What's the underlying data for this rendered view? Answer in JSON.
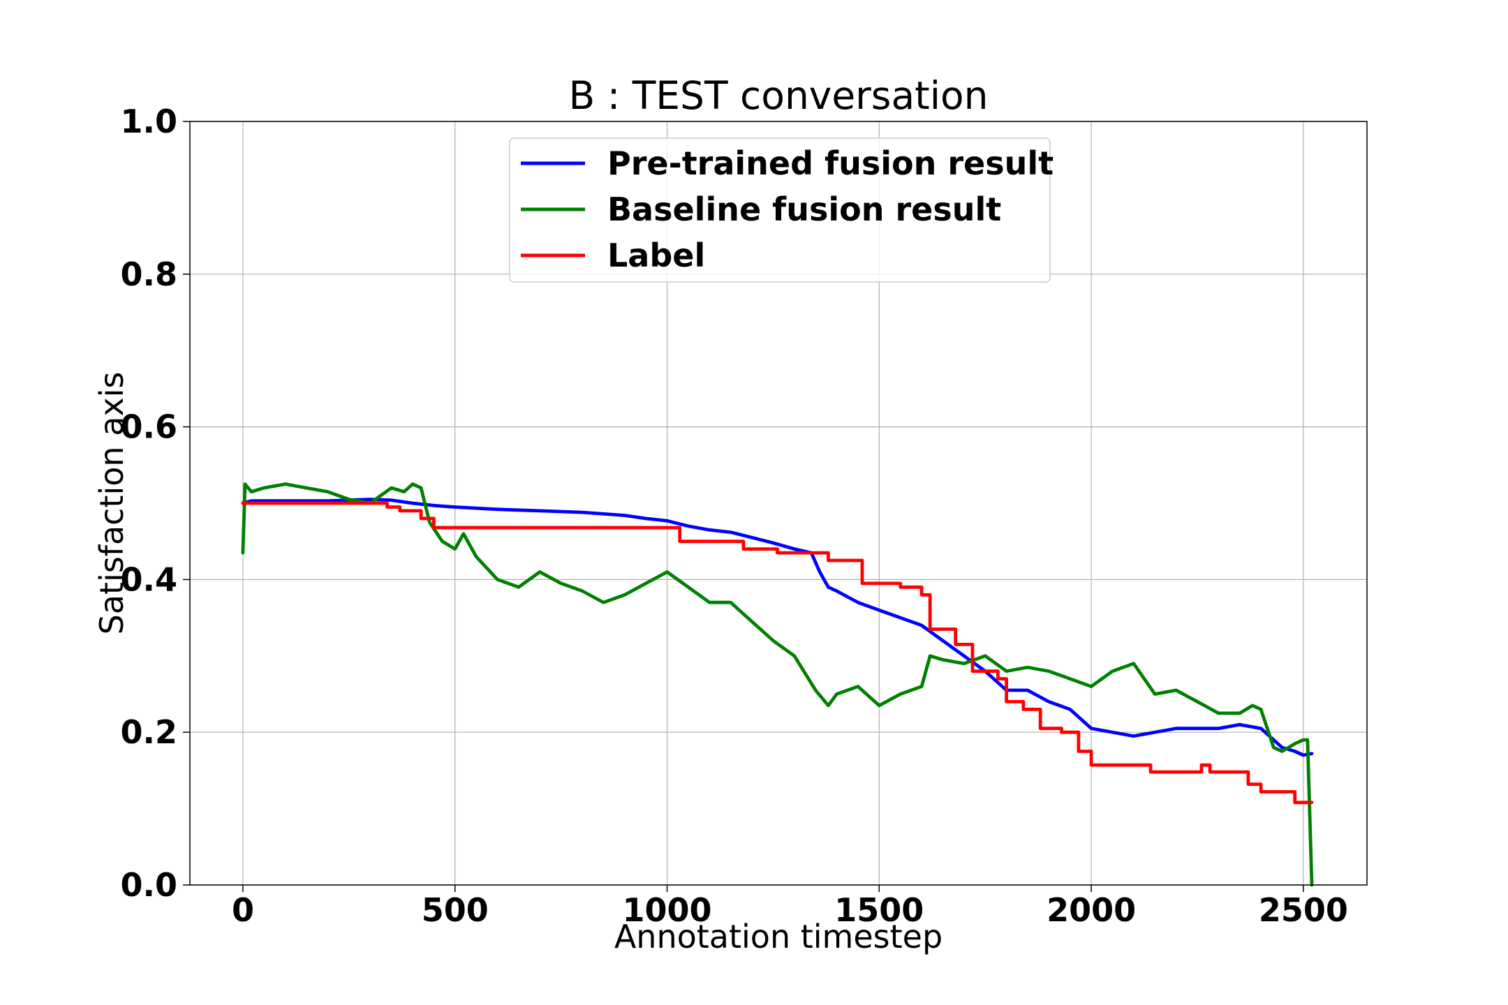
{
  "chart_data": {
    "type": "line",
    "title": "B : TEST conversation",
    "xlabel": "Annotation timestep",
    "ylabel": "Satisfaction axis",
    "xlim": [
      -125,
      2650
    ],
    "ylim": [
      0.0,
      1.0
    ],
    "xticks": [
      0,
      500,
      1000,
      1500,
      2000,
      2500
    ],
    "xtick_labels": [
      "0",
      "500",
      "1000",
      "1500",
      "2000",
      "2500"
    ],
    "yticks": [
      0.0,
      0.2,
      0.4,
      0.6,
      0.8,
      1.0
    ],
    "ytick_labels": [
      "0.0",
      "0.2",
      "0.4",
      "0.6",
      "0.8",
      "1.0"
    ],
    "grid": true,
    "legend_position": "top-center",
    "series": [
      {
        "name": "Pre-trained fusion result",
        "color": "#0000ff",
        "x": [
          0,
          20,
          100,
          200,
          300,
          350,
          400,
          450,
          500,
          600,
          700,
          800,
          900,
          950,
          1000,
          1050,
          1100,
          1150,
          1200,
          1250,
          1300,
          1340,
          1360,
          1380,
          1400,
          1450,
          1500,
          1550,
          1600,
          1650,
          1700,
          1750,
          1800,
          1850,
          1900,
          1950,
          2000,
          2050,
          2100,
          2150,
          2200,
          2250,
          2300,
          2350,
          2400,
          2450,
          2480,
          2500,
          2520
        ],
        "y": [
          0.5,
          0.503,
          0.503,
          0.503,
          0.505,
          0.504,
          0.5,
          0.497,
          0.495,
          0.492,
          0.49,
          0.488,
          0.484,
          0.48,
          0.477,
          0.47,
          0.465,
          0.462,
          0.455,
          0.448,
          0.44,
          0.435,
          0.41,
          0.39,
          0.385,
          0.37,
          0.36,
          0.35,
          0.34,
          0.32,
          0.3,
          0.28,
          0.255,
          0.255,
          0.24,
          0.23,
          0.205,
          0.2,
          0.195,
          0.2,
          0.205,
          0.205,
          0.205,
          0.21,
          0.205,
          0.18,
          0.175,
          0.17,
          0.172
        ]
      },
      {
        "name": "Baseline fusion result",
        "color": "#008000",
        "x": [
          0,
          5,
          20,
          50,
          100,
          150,
          200,
          250,
          300,
          350,
          380,
          400,
          420,
          440,
          470,
          500,
          520,
          550,
          600,
          650,
          700,
          750,
          800,
          850,
          900,
          950,
          1000,
          1050,
          1100,
          1150,
          1200,
          1250,
          1300,
          1350,
          1380,
          1400,
          1450,
          1500,
          1550,
          1600,
          1620,
          1650,
          1700,
          1750,
          1800,
          1850,
          1900,
          1950,
          2000,
          2050,
          2100,
          2150,
          2200,
          2250,
          2300,
          2350,
          2380,
          2400,
          2430,
          2450,
          2480,
          2500,
          2510,
          2520
        ],
        "y": [
          0.435,
          0.525,
          0.515,
          0.52,
          0.525,
          0.52,
          0.515,
          0.505,
          0.5,
          0.52,
          0.515,
          0.525,
          0.52,
          0.475,
          0.45,
          0.44,
          0.46,
          0.43,
          0.4,
          0.39,
          0.41,
          0.395,
          0.385,
          0.37,
          0.38,
          0.395,
          0.41,
          0.39,
          0.37,
          0.37,
          0.345,
          0.32,
          0.3,
          0.255,
          0.235,
          0.25,
          0.26,
          0.235,
          0.25,
          0.26,
          0.3,
          0.295,
          0.29,
          0.3,
          0.28,
          0.285,
          0.28,
          0.27,
          0.26,
          0.28,
          0.29,
          0.25,
          0.255,
          0.24,
          0.225,
          0.225,
          0.235,
          0.23,
          0.18,
          0.175,
          0.185,
          0.19,
          0.19,
          0.0
        ]
      },
      {
        "name": "Label",
        "color": "#ff0000",
        "x": [
          0,
          340,
          340,
          370,
          370,
          420,
          420,
          450,
          450,
          1030,
          1030,
          1180,
          1180,
          1260,
          1260,
          1380,
          1380,
          1460,
          1460,
          1550,
          1550,
          1600,
          1600,
          1620,
          1620,
          1680,
          1680,
          1720,
          1720,
          1780,
          1780,
          1800,
          1800,
          1840,
          1840,
          1880,
          1880,
          1930,
          1930,
          1970,
          1970,
          2000,
          2000,
          2140,
          2140,
          2260,
          2260,
          2280,
          2280,
          2370,
          2370,
          2400,
          2400,
          2480,
          2480,
          2520
        ],
        "y": [
          0.5,
          0.5,
          0.495,
          0.495,
          0.49,
          0.49,
          0.48,
          0.48,
          0.468,
          0.468,
          0.45,
          0.45,
          0.44,
          0.44,
          0.435,
          0.435,
          0.425,
          0.425,
          0.395,
          0.395,
          0.39,
          0.39,
          0.38,
          0.38,
          0.335,
          0.335,
          0.315,
          0.315,
          0.28,
          0.28,
          0.27,
          0.27,
          0.24,
          0.24,
          0.23,
          0.23,
          0.205,
          0.205,
          0.2,
          0.2,
          0.175,
          0.175,
          0.157,
          0.157,
          0.148,
          0.148,
          0.157,
          0.157,
          0.148,
          0.148,
          0.132,
          0.132,
          0.122,
          0.122,
          0.108,
          0.108
        ]
      }
    ]
  }
}
